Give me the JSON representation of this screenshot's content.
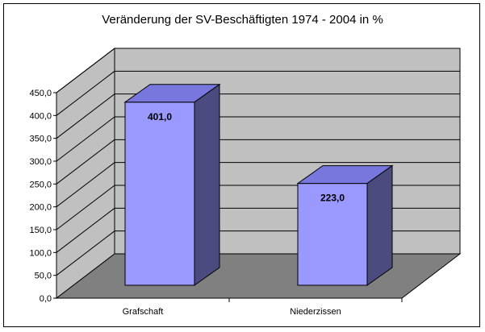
{
  "chart_data": {
    "type": "bar",
    "title": "Veränderung der SV-Beschäftigten 1974 - 2004 in %",
    "categories": [
      "Grafschaft",
      "Niederzissen"
    ],
    "values": [
      401.0,
      223.0
    ],
    "data_labels": [
      "401,0",
      "223,0"
    ],
    "ylim": [
      0,
      450
    ],
    "yticks": [
      "0,0",
      "50,0",
      "100,0",
      "150,0",
      "200,0",
      "250,0",
      "300,0",
      "350,0",
      "400,0",
      "450,0"
    ],
    "xlabel": "",
    "ylabel": "",
    "grid": true,
    "legend": "none",
    "colors": {
      "bar_front": "#9999FF",
      "bar_top": "#7777DD",
      "bar_side": "#4B4B80",
      "back_wall": "#C0C0C0",
      "side_wall": "#C0C0C0",
      "floor": "#808080"
    }
  }
}
